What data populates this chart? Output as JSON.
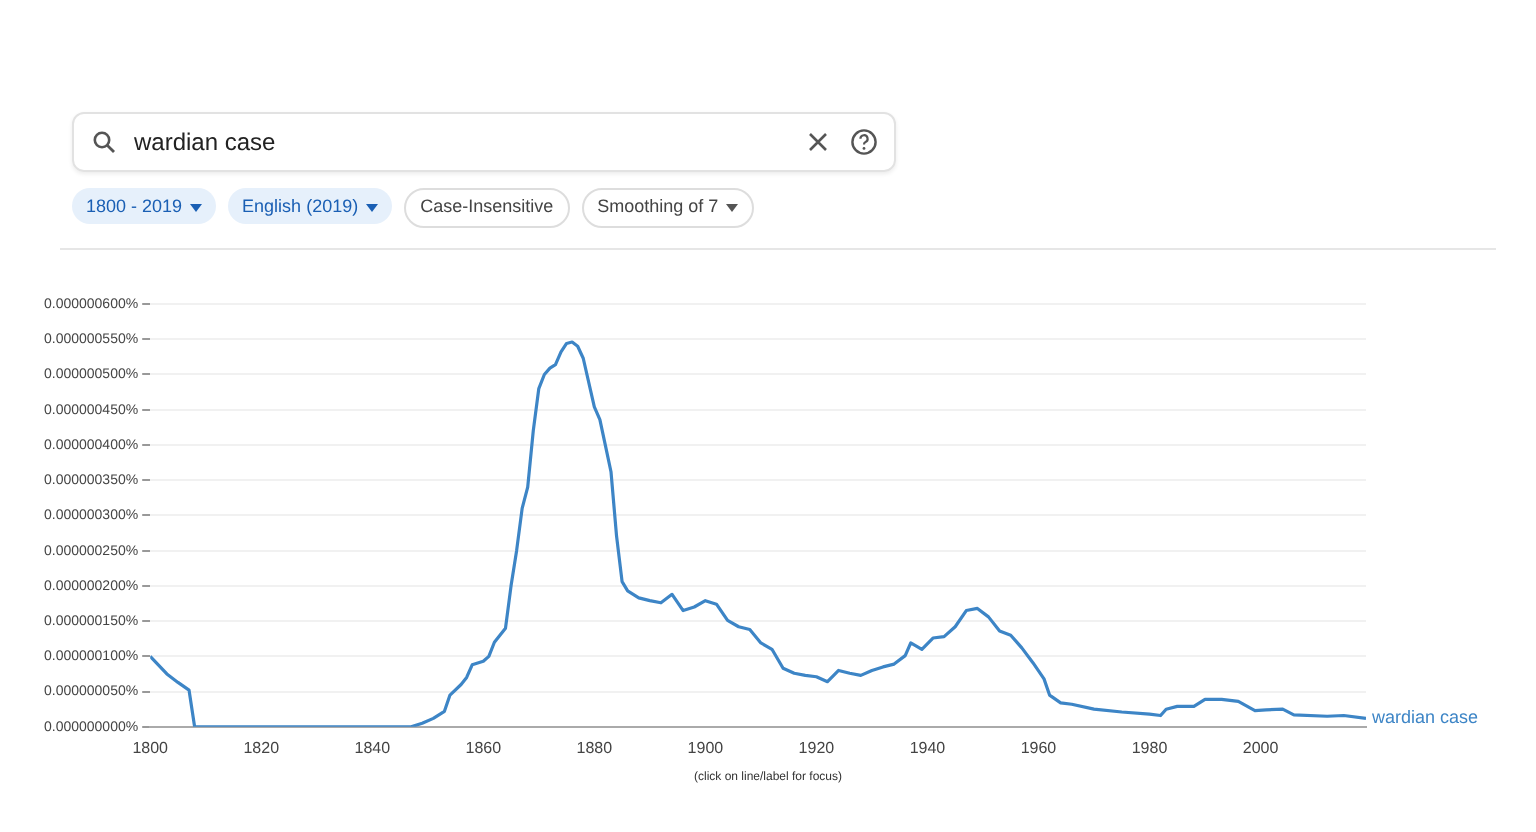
{
  "chart_data": {
    "type": "line",
    "annotations": [
      "wardian case",
      "1800 - 2019",
      "English (2019)",
      "Case-Insensitive",
      "Smoothing of 7",
      "(click on line/label for focus)"
    ],
    "series": [
      {
        "name": "wardian case",
        "color": "#3d85c6",
        "x": [
          1800,
          1803,
          1805,
          1807,
          1808,
          1810,
          1820,
          1830,
          1840,
          1847,
          1849,
          1851,
          1853,
          1854,
          1856,
          1857,
          1858,
          1860,
          1861,
          1862,
          1864,
          1865,
          1866,
          1867,
          1868,
          1869,
          1870,
          1871,
          1872,
          1873,
          1874,
          1875,
          1876,
          1877,
          1878,
          1880,
          1881,
          1882,
          1883,
          1884,
          1885,
          1886,
          1888,
          1890,
          1892,
          1894,
          1896,
          1898,
          1900,
          1902,
          1904,
          1906,
          1908,
          1910,
          1912,
          1914,
          1916,
          1918,
          1920,
          1922,
          1924,
          1926,
          1928,
          1930,
          1932,
          1934,
          1936,
          1937,
          1939,
          1941,
          1943,
          1945,
          1947,
          1949,
          1951,
          1953,
          1955,
          1957,
          1959,
          1961,
          1962,
          1964,
          1966,
          1970,
          1975,
          1980,
          1982,
          1983,
          1985,
          1988,
          1990,
          1993,
          1996,
          1999,
          2001,
          2004,
          2006,
          2012,
          2015,
          2019
        ],
        "values": [
          1e-07,
          7.5e-08,
          6.3e-08,
          5.2e-08,
          0,
          0,
          0,
          0,
          0,
          0,
          5e-09,
          1.2e-08,
          2.2e-08,
          4.5e-08,
          6e-08,
          7e-08,
          8.8e-08,
          9.3e-08,
          1e-07,
          1.2e-07,
          1.4e-07,
          2e-07,
          2.5e-07,
          3.1e-07,
          3.4e-07,
          4.2e-07,
          4.8e-07,
          5e-07,
          5.09e-07,
          5.14e-07,
          5.32e-07,
          5.44e-07,
          5.46e-07,
          5.4e-07,
          5.23e-07,
          4.54e-07,
          4.36e-07,
          3.99e-07,
          3.62e-07,
          2.71e-07,
          2.06e-07,
          1.93e-07,
          1.83e-07,
          1.79e-07,
          1.76e-07,
          1.88e-07,
          1.65e-07,
          1.7e-07,
          1.79e-07,
          1.74e-07,
          1.51e-07,
          1.42e-07,
          1.38e-07,
          1.19e-07,
          1.1e-07,
          8.3e-08,
          7.6e-08,
          7.3e-08,
          7.1e-08,
          6.4e-08,
          8e-08,
          7.6e-08,
          7.3e-08,
          8e-08,
          8.5e-08,
          8.9e-08,
          1.01e-07,
          1.19e-07,
          1.1e-07,
          1.26e-07,
          1.28e-07,
          1.42e-07,
          1.65e-07,
          1.68e-07,
          1.56e-07,
          1.36e-07,
          1.3e-07,
          1.12e-07,
          9.1e-08,
          6.8e-08,
          4.5e-08,
          3.4e-08,
          3.2e-08,
          2.5e-08,
          2.1e-08,
          1.8e-08,
          1.6e-08,
          2.5e-08,
          2.9e-08,
          2.9e-08,
          3.9e-08,
          3.9e-08,
          3.6e-08,
          2.3e-08,
          2.4e-08,
          2.5e-08,
          1.7e-08,
          1.5e-08,
          1.6e-08,
          1.2e-08
        ]
      }
    ],
    "xlim": [
      1800,
      2019
    ],
    "xticks": [
      1800,
      1820,
      1840,
      1860,
      1880,
      1900,
      1920,
      1940,
      1960,
      1980,
      2000
    ],
    "ylim": [
      0,
      6e-07
    ],
    "yticks": [
      {
        "value": 0,
        "label": "0.000000000%"
      },
      {
        "value": 5e-08,
        "label": "0.000000050%"
      },
      {
        "value": 1e-07,
        "label": "0.000000100%"
      },
      {
        "value": 1.5e-07,
        "label": "0.000000150%"
      },
      {
        "value": 2e-07,
        "label": "0.000000200%"
      },
      {
        "value": 2.5e-07,
        "label": "0.000000250%"
      },
      {
        "value": 3e-07,
        "label": "0.000000300%"
      },
      {
        "value": 3.5e-07,
        "label": "0.000000350%"
      },
      {
        "value": 4e-07,
        "label": "0.000000400%"
      },
      {
        "value": 4.5e-07,
        "label": "0.000000450%"
      },
      {
        "value": 5e-07,
        "label": "0.000000500%"
      },
      {
        "value": 5.5e-07,
        "label": "0.000000550%"
      },
      {
        "value": 6e-07,
        "label": "0.000000600%"
      }
    ],
    "grid": "y",
    "legend": false,
    "marker": "none",
    "line_style": "solid"
  }
}
